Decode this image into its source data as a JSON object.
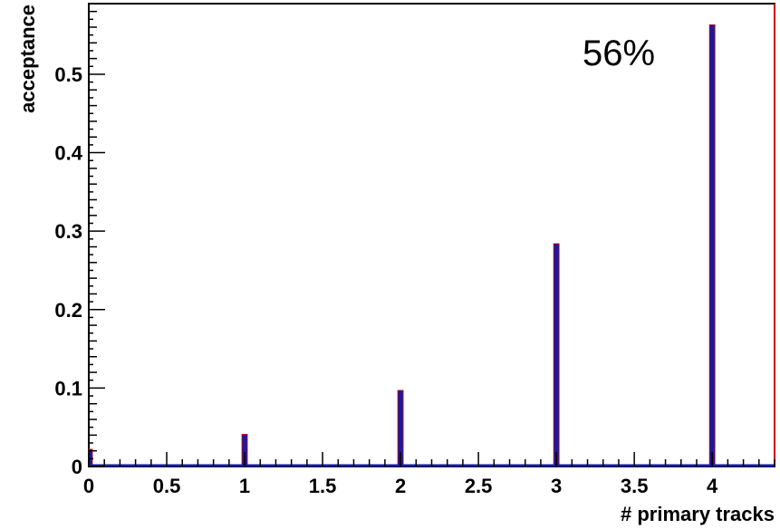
{
  "chart_data": {
    "type": "bar",
    "xlabel": "# primary tracks",
    "ylabel": "acceptance",
    "xlim": [
      0,
      4.4
    ],
    "ylim": [
      0,
      0.59
    ],
    "x": [
      0,
      1,
      2,
      3,
      4
    ],
    "values": [
      0.022,
      0.041,
      0.097,
      0.284,
      0.563
    ],
    "x_ticks": [
      0,
      0.5,
      1,
      1.5,
      2,
      2.5,
      3,
      3.5,
      4
    ],
    "x_tick_labels": [
      "0",
      "0.5",
      "1",
      "1.5",
      "2",
      "2.5",
      "3",
      "3.5",
      "4"
    ],
    "y_ticks": [
      0,
      0.1,
      0.2,
      0.3,
      0.4,
      0.5
    ],
    "y_tick_labels": [
      "0",
      "0.1",
      "0.2",
      "0.3",
      "0.4",
      "0.5"
    ],
    "annotation": "56%",
    "grid": false,
    "colors": {
      "bar_fill": "#1a1aa0",
      "bar_edge": "#cc0000",
      "frame": "#000000",
      "right_edge": "#cc0000"
    }
  }
}
